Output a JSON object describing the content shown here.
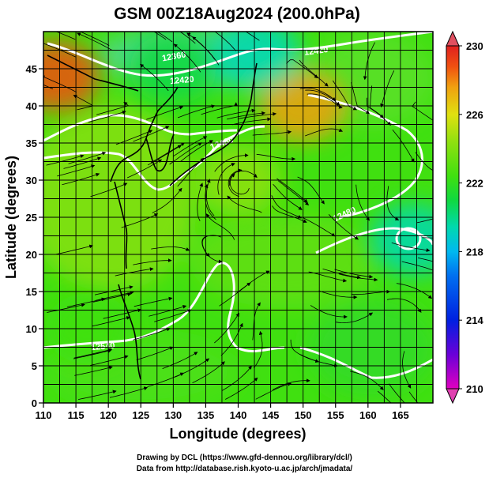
{
  "chart_data": {
    "type": "heatmap",
    "title": "GSM 00Z18Aug2024 (200.0hPa)",
    "xlabel": "Longitude (degrees)",
    "ylabel": "Latitude  (degrees)",
    "xlim": [
      110,
      170
    ],
    "ylim": [
      0,
      50
    ],
    "x_ticks": [
      110,
      115,
      120,
      125,
      130,
      135,
      140,
      145,
      150,
      155,
      160,
      165
    ],
    "y_ticks": [
      0,
      5,
      10,
      15,
      20,
      25,
      30,
      35,
      40,
      45
    ],
    "grid": true,
    "colorbar": {
      "position": "right",
      "min": 210,
      "max": 230,
      "ticks": [
        210,
        214,
        218,
        222,
        226,
        230
      ],
      "colors": [
        "#e000c0",
        "#6a00d8",
        "#0020e0",
        "#0070f0",
        "#00b8f0",
        "#00d8b0",
        "#10d840",
        "#40e010",
        "#90e010",
        "#e0e010",
        "#f0a010",
        "#f05010",
        "#e02020"
      ]
    },
    "contour_labels": [
      "12360",
      "12420",
      "12480",
      "12420",
      "12480",
      "12540"
    ],
    "field_centers": [
      {
        "lon": 112,
        "lat": 44,
        "value": 229
      },
      {
        "lon": 150,
        "lat": 40,
        "value": 227
      },
      {
        "lon": 140,
        "lat": 30,
        "value": 224
      },
      {
        "lon": 130,
        "lat": 45,
        "value": 220
      },
      {
        "lon": 143,
        "lat": 47,
        "value": 219
      },
      {
        "lon": 167,
        "lat": 22,
        "value": 218
      },
      {
        "lon": 117,
        "lat": 10,
        "value": 222
      }
    ]
  },
  "credits": {
    "line1": "Drawing by DCL (https://www.gfd-dennou.org/library/dcl/)",
    "line2": "Data from http://database.rish.kyoto-u.ac.jp/arch/jmadata/"
  }
}
